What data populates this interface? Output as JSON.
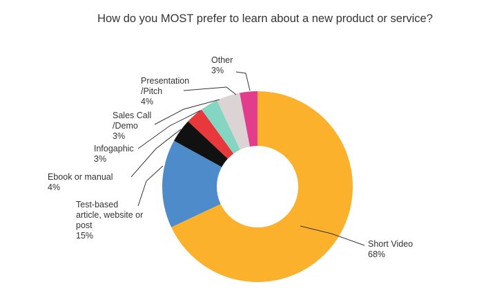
{
  "chart_data": {
    "type": "pie",
    "donut": true,
    "title": "How do you MOST prefer to learn about a new product or service?",
    "legend": "none",
    "slices": [
      {
        "label": [
          "Short Video"
        ],
        "value": 68,
        "value_label": "68%",
        "color": "#FBB12C"
      },
      {
        "label": [
          "Test-based",
          "article, website or",
          "post"
        ],
        "value": 15,
        "value_label": "15%",
        "color": "#4E8BCB"
      },
      {
        "label": [
          "Ebook or manual"
        ],
        "value": 4,
        "value_label": "4%",
        "color": "#111111"
      },
      {
        "label": [
          "Infogaphic"
        ],
        "value": 3,
        "value_label": "3%",
        "color": "#E8383B"
      },
      {
        "label": [
          "Sales Call",
          "/Demo"
        ],
        "value": 3,
        "value_label": "3%",
        "color": "#84D5C2"
      },
      {
        "label": [
          "Presentation",
          "/Pitch"
        ],
        "value": 4,
        "value_label": "4%",
        "color": "#DCD3D5"
      },
      {
        "label": [
          "Other"
        ],
        "value": 3,
        "value_label": "3%",
        "color": "#E23C8C"
      }
    ]
  }
}
